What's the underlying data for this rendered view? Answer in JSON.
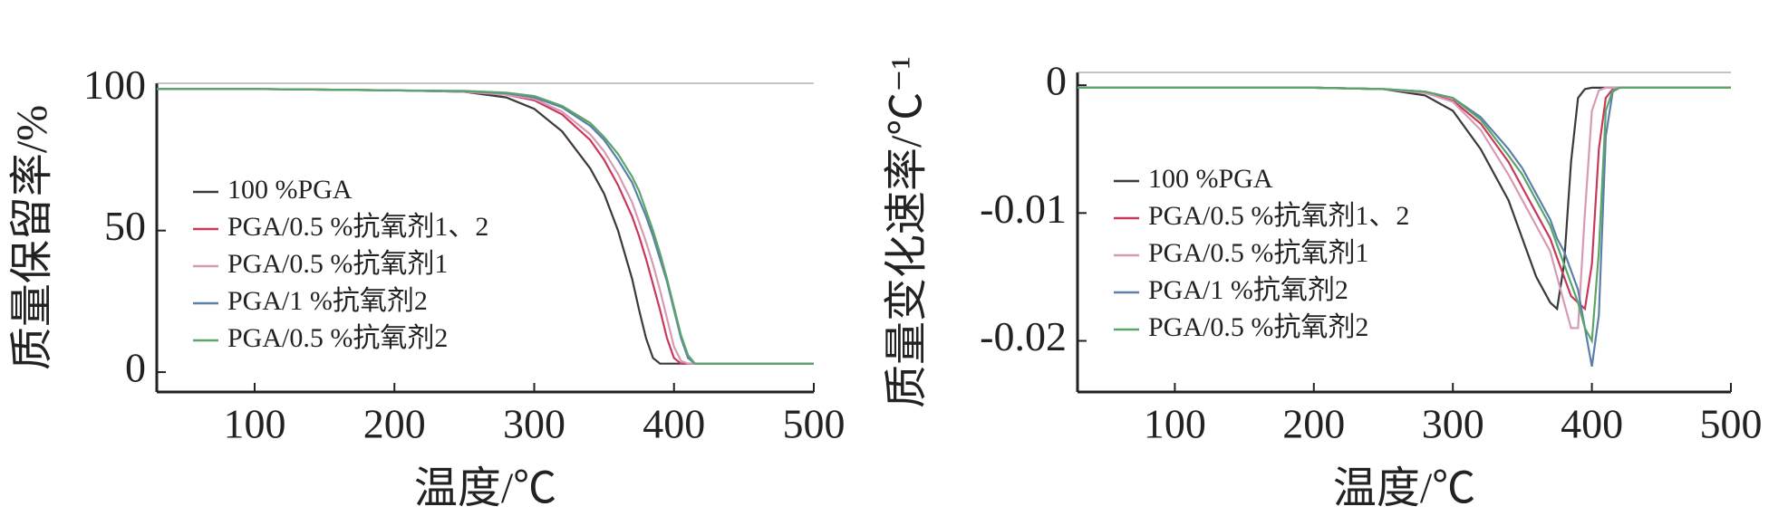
{
  "chart_data": [
    {
      "type": "line",
      "xlabel": "温度/℃",
      "ylabel": "质量保留率/%",
      "x": [
        30,
        100,
        200,
        250,
        280,
        300,
        320,
        340,
        350,
        360,
        370,
        375,
        380,
        385,
        390,
        395,
        400,
        405,
        410,
        415,
        420,
        450,
        500
      ],
      "xlim": [
        30,
        500
      ],
      "xticks": [
        100,
        200,
        300,
        400,
        500
      ],
      "ylim": [
        -7,
        102
      ],
      "yticks": [
        0,
        50,
        100
      ],
      "legend": "left",
      "series": [
        {
          "name": "100 %PGA",
          "color": "#3a3a3a",
          "values": [
            100,
            100,
            99.5,
            99,
            97,
            93,
            85,
            72,
            63,
            50,
            33,
            22,
            12,
            5,
            3,
            3,
            3,
            3,
            3,
            3,
            3,
            3,
            3
          ]
        },
        {
          "name": "PGA/0.5 %抗氧剂1、2",
          "color": "#c8385a",
          "values": [
            100,
            100,
            99.5,
            99,
            98,
            96,
            91,
            82,
            75,
            66,
            55,
            48,
            40,
            31,
            22,
            12,
            5,
            3,
            3,
            3,
            3,
            3,
            3
          ]
        },
        {
          "name": "PGA/0.5 %抗氧剂1",
          "color": "#d79ab5",
          "values": [
            100,
            100,
            99.5,
            99,
            98,
            96.5,
            92,
            84,
            78,
            70,
            60,
            53,
            46,
            38,
            29,
            19,
            9,
            4,
            3,
            3,
            3,
            3,
            3
          ]
        },
        {
          "name": "PGA/1 %抗氧剂2",
          "color": "#5a7fa8",
          "values": [
            100,
            100,
            99.5,
            99.2,
            98.5,
            97,
            93.5,
            87,
            82,
            75,
            67,
            61,
            55,
            48,
            40,
            32,
            22,
            12,
            5,
            3,
            3,
            3,
            3
          ]
        },
        {
          "name": "PGA/0.5 %抗氧剂2",
          "color": "#5aa56a",
          "values": [
            100,
            100,
            99.5,
            99.3,
            98.7,
            97.5,
            94,
            88,
            83,
            77,
            69,
            64,
            57,
            50,
            42,
            33,
            23,
            13,
            6,
            3,
            3,
            3,
            3
          ]
        }
      ]
    },
    {
      "type": "line",
      "xlabel": "温度/℃",
      "ylabel": "质量变化速率/℃⁻¹",
      "x": [
        30,
        100,
        200,
        250,
        280,
        300,
        320,
        340,
        350,
        360,
        370,
        375,
        380,
        385,
        390,
        395,
        400,
        405,
        410,
        415,
        420,
        450,
        500
      ],
      "xlim": [
        30,
        500
      ],
      "xticks": [
        100,
        200,
        300,
        400,
        500
      ],
      "ylim": [
        -0.024,
        0.001
      ],
      "yticks": [
        0,
        -0.01,
        -0.02
      ],
      "legend": "left",
      "series": [
        {
          "name": "100 %PGA",
          "color": "#3a3a3a",
          "values": [
            -0.0002,
            -0.0002,
            -0.0002,
            -0.0003,
            -0.0008,
            -0.002,
            -0.005,
            -0.009,
            -0.012,
            -0.015,
            -0.017,
            -0.0175,
            -0.014,
            -0.006,
            -0.001,
            -0.0003,
            -0.0002,
            -0.0002,
            -0.0002,
            -0.0002,
            -0.0002,
            -0.0002,
            -0.0002
          ]
        },
        {
          "name": "PGA/0.5 %抗氧剂1、2",
          "color": "#c8385a",
          "values": [
            -0.0002,
            -0.0002,
            -0.0002,
            -0.0003,
            -0.0006,
            -0.0012,
            -0.003,
            -0.006,
            -0.008,
            -0.01,
            -0.012,
            -0.0135,
            -0.015,
            -0.0165,
            -0.017,
            -0.0175,
            -0.014,
            -0.005,
            -0.001,
            -0.0003,
            -0.0002,
            -0.0002,
            -0.0002
          ]
        },
        {
          "name": "PGA/0.5 %抗氧剂1",
          "color": "#d79ab5",
          "values": [
            -0.0002,
            -0.0002,
            -0.0002,
            -0.0003,
            -0.0006,
            -0.0013,
            -0.0035,
            -0.007,
            -0.009,
            -0.011,
            -0.013,
            -0.015,
            -0.017,
            -0.019,
            -0.019,
            -0.01,
            -0.002,
            -0.0004,
            -0.0002,
            -0.0002,
            -0.0002,
            -0.0002,
            -0.0002
          ]
        },
        {
          "name": "PGA/1 %抗氧剂2",
          "color": "#5a7fa8",
          "values": [
            -0.0002,
            -0.0002,
            -0.0002,
            -0.0003,
            -0.0005,
            -0.001,
            -0.0025,
            -0.005,
            -0.0065,
            -0.0085,
            -0.0105,
            -0.012,
            -0.013,
            -0.0145,
            -0.016,
            -0.019,
            -0.022,
            -0.018,
            -0.004,
            -0.0005,
            -0.0002,
            -0.0002,
            -0.0002
          ]
        },
        {
          "name": "PGA/0.5 %抗氧剂2",
          "color": "#5aa56a",
          "values": [
            -0.0002,
            -0.0002,
            -0.0002,
            -0.0003,
            -0.0005,
            -0.001,
            -0.0027,
            -0.0055,
            -0.007,
            -0.009,
            -0.011,
            -0.0125,
            -0.014,
            -0.0155,
            -0.017,
            -0.019,
            -0.02,
            -0.013,
            -0.002,
            -0.0004,
            -0.0002,
            -0.0002,
            -0.0002
          ]
        }
      ]
    }
  ]
}
